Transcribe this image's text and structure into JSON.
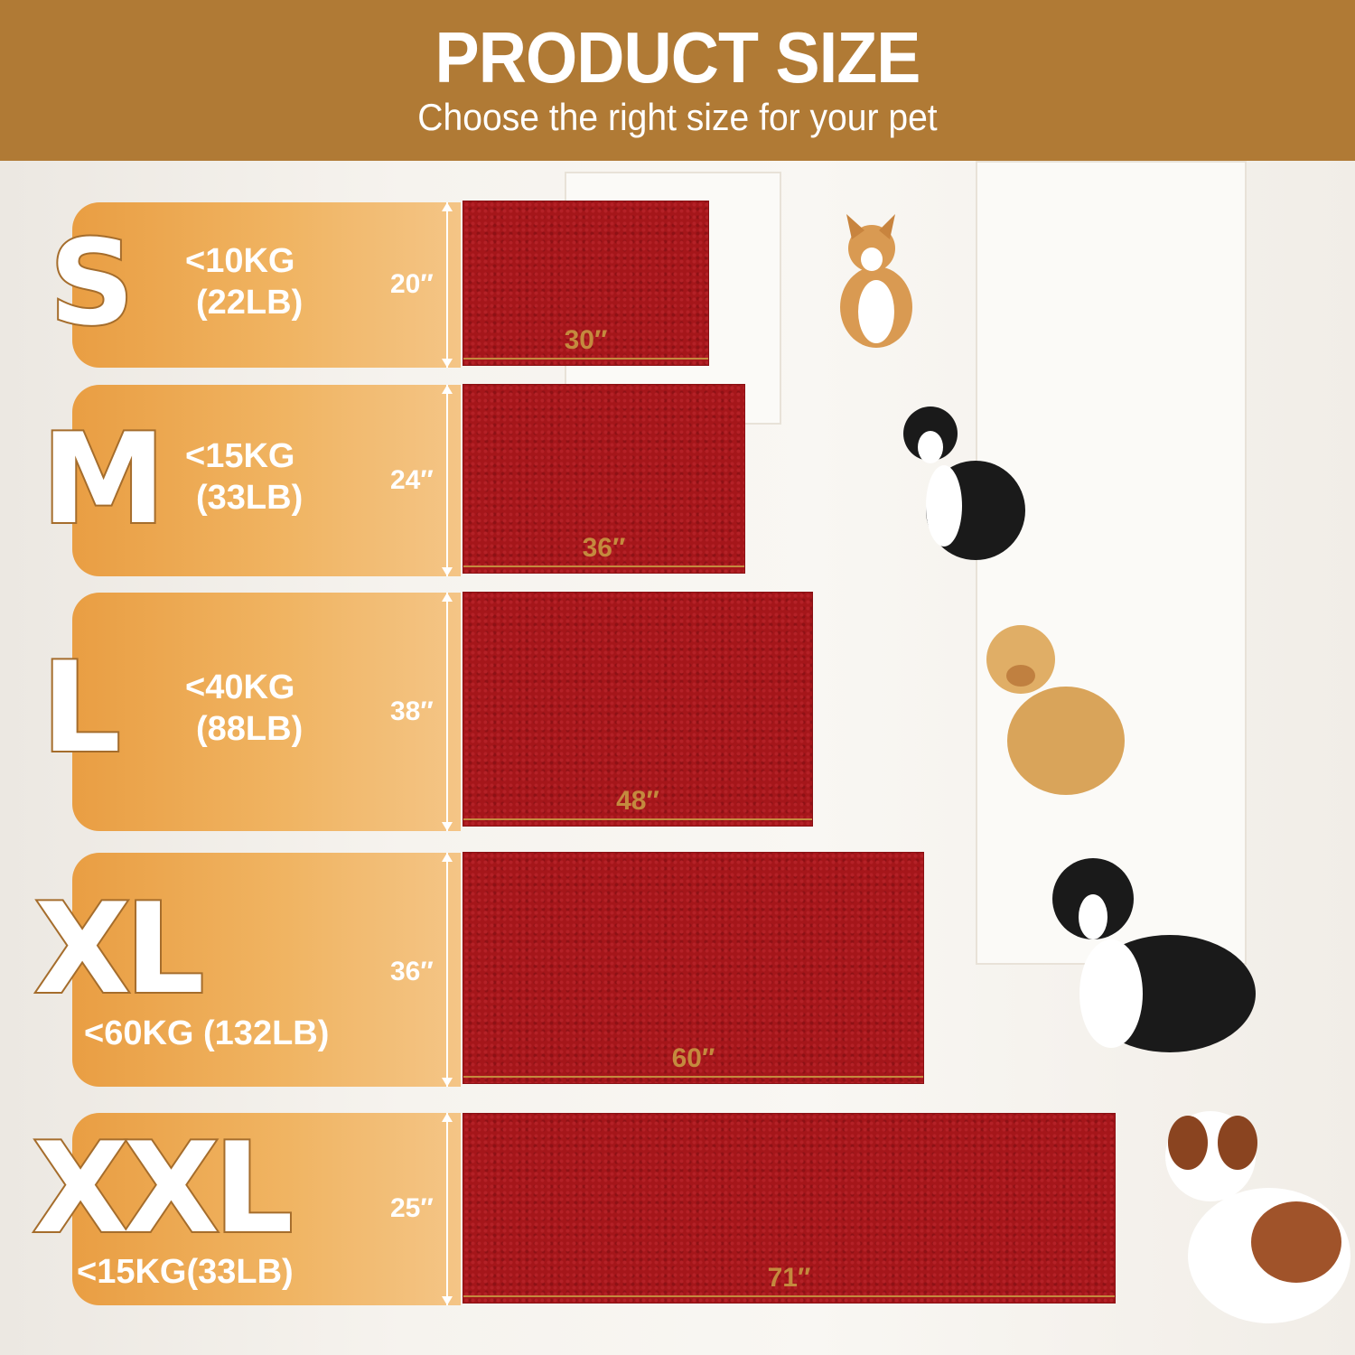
{
  "header": {
    "title": "PRODUCT SIZE",
    "subtitle": "Choose the right size for your pet"
  },
  "colors": {
    "header": "#b07a35",
    "panel": "#f0b462",
    "mat": "#a5161a"
  },
  "sizes": [
    {
      "size": "S",
      "weight_line1": "<10KG",
      "weight_line2": "(22LB)",
      "height": "20″",
      "width": "30″",
      "dog": "corgi"
    },
    {
      "size": "M",
      "weight_line1": "<15KG",
      "weight_line2": "(33LB)",
      "height": "24″",
      "width": "36″",
      "dog": "border collie"
    },
    {
      "size": "L",
      "weight_line1": "<40KG",
      "weight_line2": "(88LB)",
      "height": "38″",
      "width": "48″",
      "dog": "golden retriever"
    },
    {
      "size": "XL",
      "weight": "<60KG (132LB)",
      "height": "36″",
      "width": "60″",
      "dog": "bernese mountain dog"
    },
    {
      "size": "XXL",
      "weight": "<15KG(33LB)",
      "height": "25″",
      "width": "71″",
      "dog": "saint bernard"
    }
  ]
}
